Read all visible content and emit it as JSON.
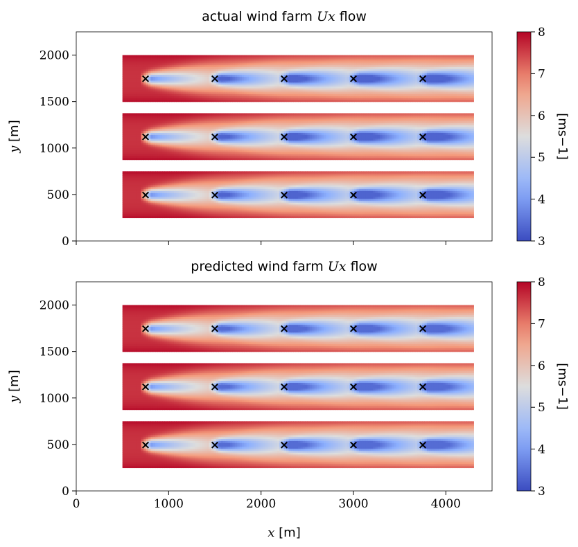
{
  "chart_data": [
    {
      "type": "heatmap",
      "title": {
        "prefix": "actual wind farm ",
        "var": "Ux",
        "suffix": " flow"
      },
      "xlabel": {
        "var": "x",
        "unit": " [m]",
        "shown": false
      },
      "ylabel": {
        "var": "y",
        "unit": " [m]"
      },
      "xlim": [
        0,
        4500
      ],
      "ylim": [
        0,
        2250
      ],
      "xticks": [
        0,
        1000,
        2000,
        3000,
        4000
      ],
      "xticklabels_shown": false,
      "yticks": [
        0,
        500,
        1000,
        1500,
        2000
      ],
      "domain_x": [
        500,
        4300
      ],
      "rows": [
        {
          "y_range": [
            1500,
            2000
          ],
          "y_center": 1750
        },
        {
          "y_range": [
            875,
            1375
          ],
          "y_center": 1125
        },
        {
          "y_range": [
            250,
            750
          ],
          "y_center": 500
        }
      ],
      "turbine_x": [
        750,
        1500,
        2250,
        3000,
        3750
      ],
      "turbine_marker": "×",
      "ambient_speed": 7.6,
      "min_wake_speed": 3.3,
      "colorbar": {
        "min": 3,
        "max": 8,
        "ticks": [
          3,
          4,
          5,
          6,
          7,
          8
        ],
        "label": "[ms−1]",
        "colormap": "coolwarm"
      }
    },
    {
      "type": "heatmap",
      "title": {
        "prefix": "predicted wind farm ",
        "var": "Ux",
        "suffix": " flow"
      },
      "xlabel": {
        "var": "x",
        "unit": " [m]",
        "shown": true
      },
      "ylabel": {
        "var": "y",
        "unit": " [m]"
      },
      "xlim": [
        0,
        4500
      ],
      "ylim": [
        0,
        2250
      ],
      "xticks": [
        0,
        1000,
        2000,
        3000,
        4000
      ],
      "xticklabels_shown": true,
      "yticks": [
        0,
        500,
        1000,
        1500,
        2000
      ],
      "domain_x": [
        500,
        4300
      ],
      "rows": [
        {
          "y_range": [
            1500,
            2000
          ],
          "y_center": 1750
        },
        {
          "y_range": [
            875,
            1375
          ],
          "y_center": 1125
        },
        {
          "y_range": [
            250,
            750
          ],
          "y_center": 500
        }
      ],
      "turbine_x": [
        750,
        1500,
        2250,
        3000,
        3750
      ],
      "turbine_marker": "×",
      "ambient_speed": 7.6,
      "min_wake_speed": 3.4,
      "colorbar": {
        "min": 3,
        "max": 8,
        "ticks": [
          3,
          4,
          5,
          6,
          7,
          8
        ],
        "label": "[ms−1]",
        "colormap": "coolwarm"
      }
    }
  ]
}
